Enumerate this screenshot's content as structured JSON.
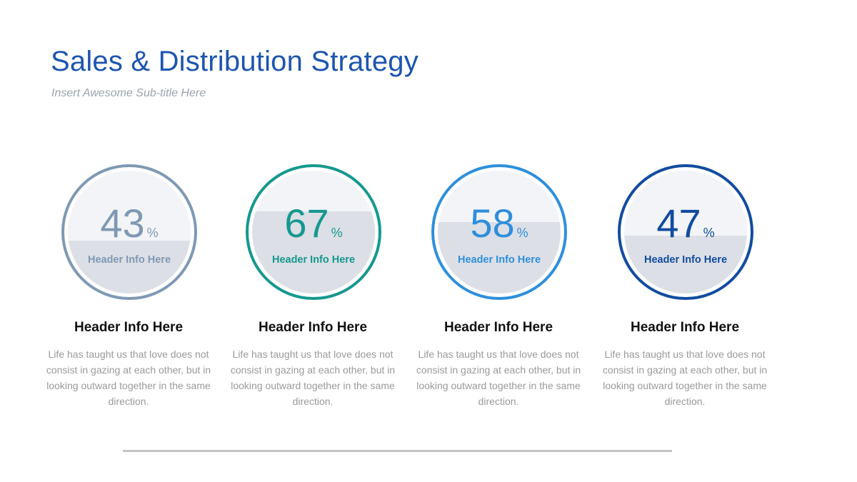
{
  "title": "Sales & Distribution Strategy",
  "subtitle": "Insert Awesome Sub-title Here",
  "colors": {
    "title": "#1d55b0",
    "subtitle": "#9aa3b0",
    "divider": "#c4c4c4"
  },
  "stats": [
    {
      "percent": 43,
      "percent_label": "43",
      "percent_sign": "%",
      "inner_label": "Header Info Here",
      "heading": "Header Info Here",
      "description": "Life has taught us that love does not consist in gazing at each other, but in looking outward together in the same direction.",
      "color": "#7f99b4"
    },
    {
      "percent": 67,
      "percent_label": "67",
      "percent_sign": "%",
      "inner_label": "Header Info Here",
      "heading": "Header Info Here",
      "description": "Life has taught us that love does not consist in gazing at each other, but in looking outward together in the same direction.",
      "color": "#15988f"
    },
    {
      "percent": 58,
      "percent_label": "58",
      "percent_sign": "%",
      "inner_label": "Header Info Here",
      "heading": "Header Info Here",
      "description": "Life has taught us that love does not consist in gazing at each other, but in looking outward together in the same direction.",
      "color": "#2e8fdc"
    },
    {
      "percent": 47,
      "percent_label": "47",
      "percent_sign": "%",
      "inner_label": "Header Info Here",
      "heading": "Header Info Here",
      "description": "Life has taught us that love does not consist in gazing at each other, but in looking outward together in the same direction.",
      "color": "#114c9f"
    }
  ]
}
